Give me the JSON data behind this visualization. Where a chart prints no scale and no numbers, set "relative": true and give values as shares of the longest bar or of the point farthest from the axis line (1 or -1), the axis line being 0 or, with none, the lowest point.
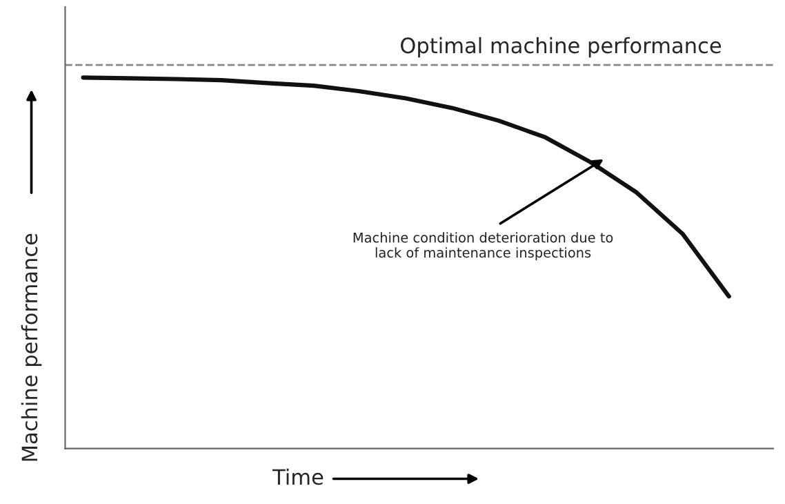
{
  "chart_data": {
    "type": "line",
    "relative": true,
    "xlabel": "Time",
    "ylabel": "Machine performance",
    "categories": [
      null,
      null,
      null,
      null,
      null,
      null,
      null,
      null,
      null,
      null,
      null,
      null,
      null,
      null,
      null
    ],
    "series": [
      {
        "color": "#111111",
        "values": [
          1,
          0.998,
          0.996,
          0.993,
          0.985,
          0.978,
          0.963,
          0.944,
          0.918,
          0.884,
          0.84,
          0.772,
          0.69,
          0.578,
          0.41
        ]
      }
    ],
    "ref_lines": [
      {
        "axis": "y",
        "value": 1.034,
        "label": "Optimal machine performance",
        "color": "#888888",
        "line_style": "dashed"
      }
    ],
    "annotations": [
      "Machine condition deterioration due to\nlack of maintenance inspections"
    ],
    "legend": false,
    "marker": "none",
    "line_style": "solid",
    "tick_labels": false
  }
}
